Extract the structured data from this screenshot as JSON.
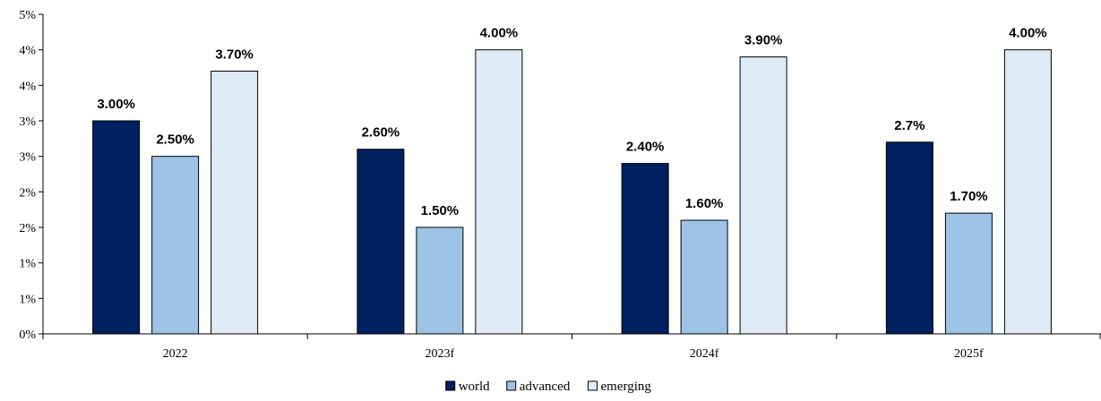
{
  "chart_data": {
    "type": "bar",
    "categories": [
      "2022",
      "2023f",
      "2024f",
      "2025f"
    ],
    "series": [
      {
        "name": "world",
        "color": "#002060",
        "values": [
          3.0,
          2.6,
          2.4,
          2.7
        ],
        "labels": [
          "3.00%",
          "2.60%",
          "2.40%",
          "2.7%"
        ]
      },
      {
        "name": "advanced",
        "color": "#9DC3E6",
        "values": [
          2.5,
          1.5,
          1.6,
          1.7
        ],
        "labels": [
          "2.50%",
          "1.50%",
          "1.60%",
          "1.70%"
        ]
      },
      {
        "name": "emerging",
        "color": "#DEEBF7",
        "values": [
          3.7,
          4.0,
          3.9,
          4.0
        ],
        "labels": [
          "3.70%",
          "4.00%",
          "3.90%",
          "4.00%"
        ]
      }
    ],
    "y_ticks": [
      "0%",
      "1%",
      "1%",
      "2%",
      "2%",
      "3%",
      "3%",
      "4%",
      "4%",
      "5%"
    ],
    "ylim": [
      0,
      4.5
    ],
    "title": "",
    "xlabel": "",
    "ylabel": "",
    "legend_position": "bottom-center",
    "grid": false
  }
}
